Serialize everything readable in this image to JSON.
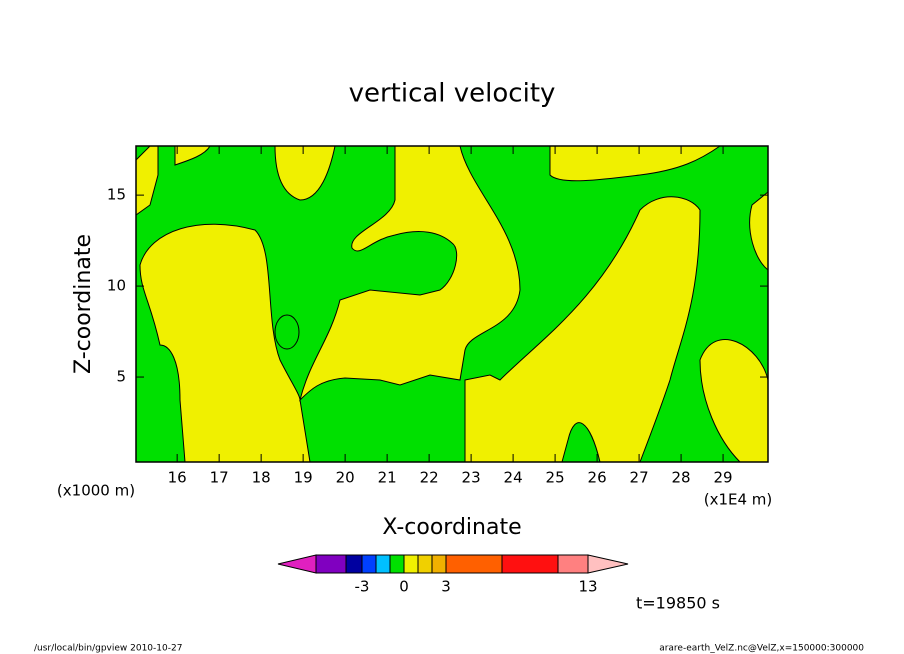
{
  "chart_data": {
    "type": "contour",
    "title": "vertical velocity",
    "x_label": "X-coordinate",
    "y_label": "Z-coordinate",
    "x_unit": "(x1E4 m)",
    "y_unit": "(x1000 m)",
    "xlim": [
      15.02,
      30.07
    ],
    "ylim": [
      0.33,
      17.7
    ],
    "xticks": [
      16,
      17,
      18,
      19,
      20,
      21,
      22,
      23,
      24,
      25,
      26,
      27,
      28,
      29
    ],
    "yticks": [
      5,
      10,
      15
    ],
    "colorbar": {
      "colors": [
        "#e020c0",
        "#8000c0",
        "#0000a0",
        "#0040ff",
        "#00c0ff",
        "#00e000",
        "#f0f000",
        "#f0d000",
        "#f0b000",
        "#ff6000",
        "#ff1010",
        "#ff8080",
        "#ffc0c0"
      ],
      "levels": [
        -5,
        -4,
        -3,
        -2,
        -1,
        0,
        1,
        2,
        3,
        6,
        10,
        13
      ],
      "ticks": [
        -3,
        0,
        3,
        13
      ]
    },
    "time_label": "t=19850 s",
    "footer_left": "/usr/local/bin/gpview  2010-10-27",
    "footer_right": "arare-earth_VelZ.nc@VelZ,x=150000:300000"
  }
}
